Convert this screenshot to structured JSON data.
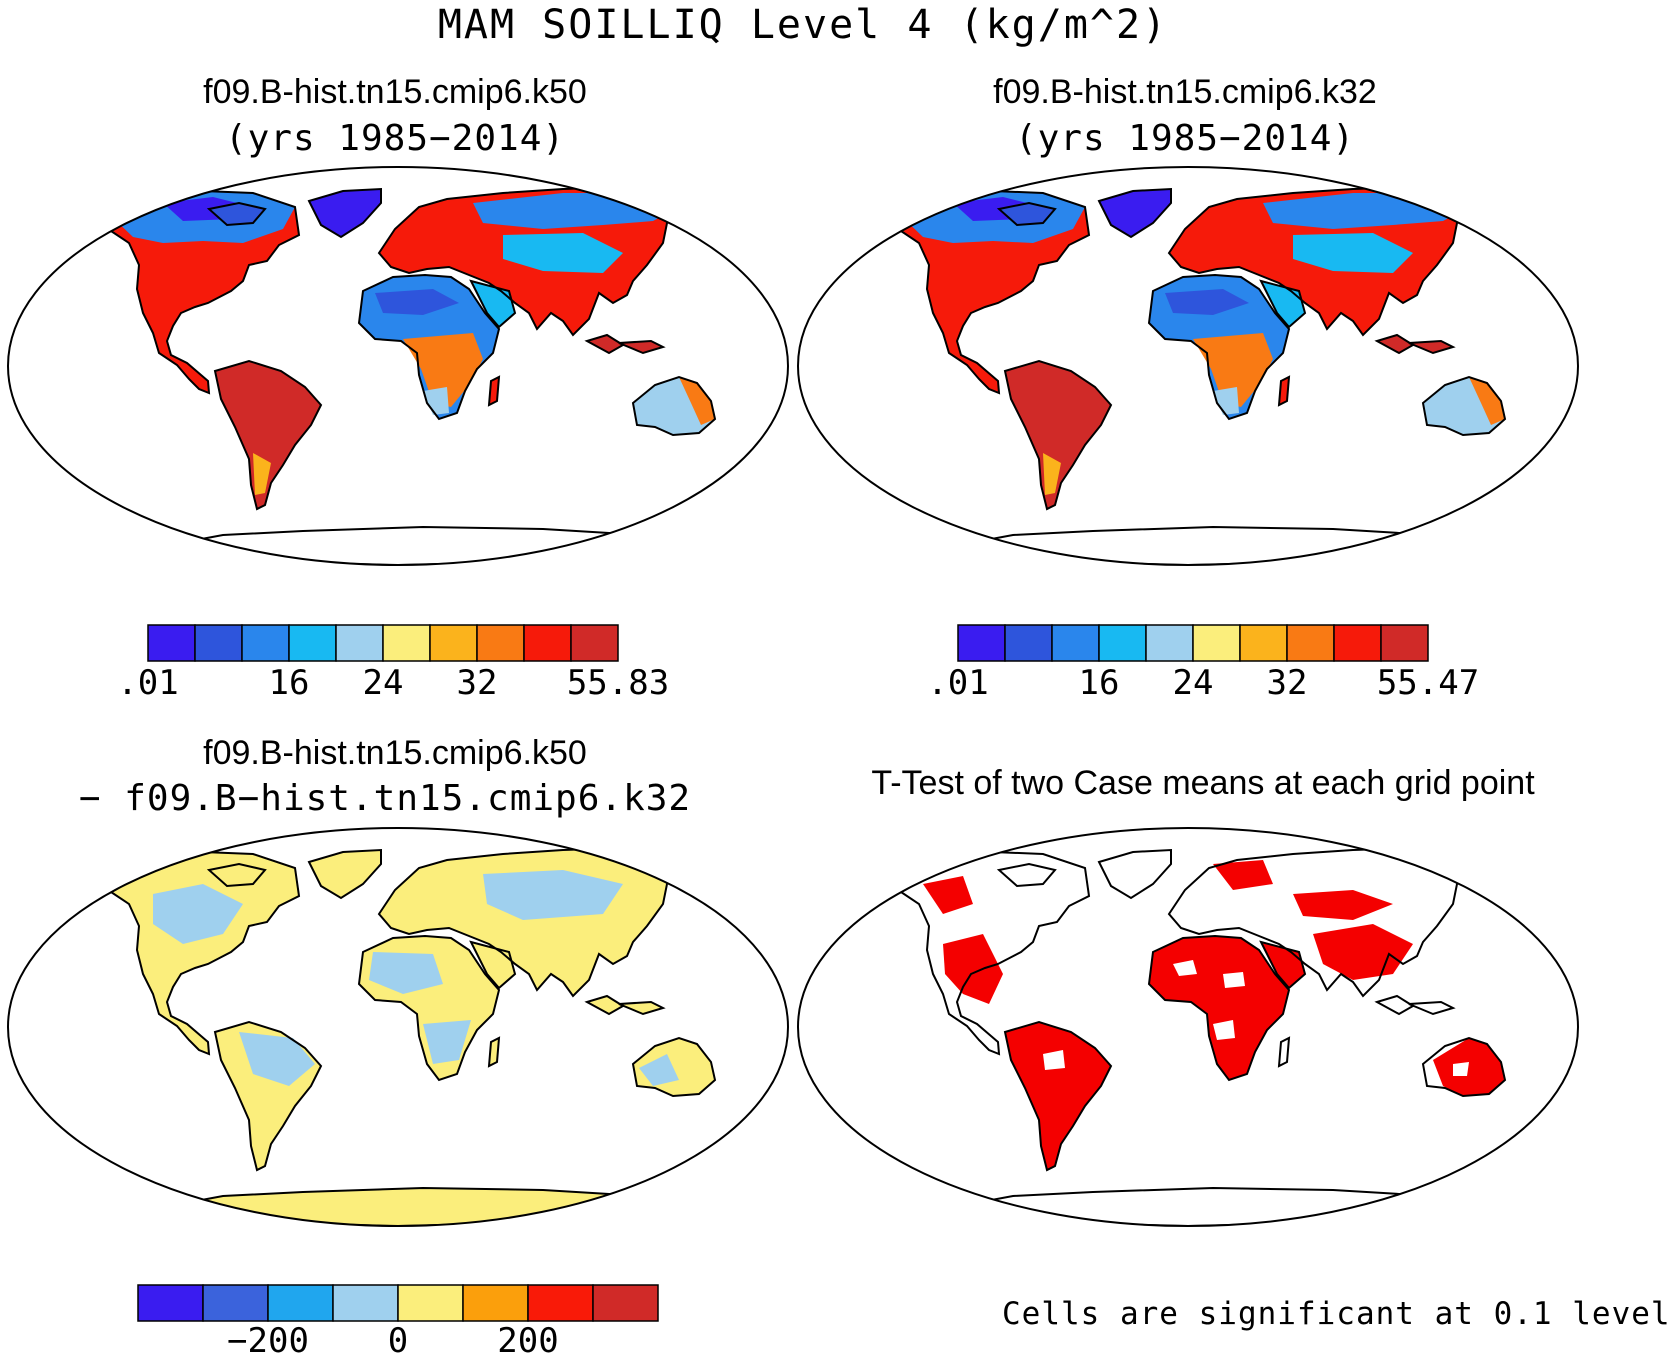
{
  "figure_title": "MAM SOILLIQ Level 4 (kg/m^2)",
  "panels": {
    "top_left": {
      "case": "f09.B-hist.tn15.cmip6.k50",
      "years": "(yrs 1985−2014)"
    },
    "top_right": {
      "case": "f09.B-hist.tn15.cmip6.k32",
      "years": "(yrs 1985−2014)"
    },
    "bottom_left": {
      "line1": "f09.B-hist.tn15.cmip6.k50",
      "line2": "− f09.B−hist.tn15.cmip6.k32"
    },
    "bottom_right": {
      "title": "T-Test of two Case means at each grid point",
      "note": "Cells are significant at 0.1 level"
    }
  },
  "colorbars": {
    "top_left": {
      "colors": [
        "#3a1cf0",
        "#2e55dc",
        "#2a86ec",
        "#18b9f2",
        "#9fd0ee",
        "#fbee7c",
        "#fbb31c",
        "#f97a14",
        "#f61a0a",
        "#d02a28"
      ],
      "labels": [
        ".01",
        "16",
        "24",
        "32",
        "55.83"
      ],
      "label_boundary_index": [
        0,
        3,
        5,
        7,
        10
      ]
    },
    "top_right": {
      "colors": [
        "#3a1cf0",
        "#2e55dc",
        "#2a86ec",
        "#18b9f2",
        "#9fd0ee",
        "#fbee7c",
        "#fbb31c",
        "#f97a14",
        "#f61a0a",
        "#d02a28"
      ],
      "labels": [
        ".01",
        "16",
        "24",
        "32",
        "55.47"
      ],
      "label_boundary_index": [
        0,
        3,
        5,
        7,
        10
      ]
    },
    "bottom_left": {
      "colors": [
        "#3a1cf0",
        "#3b63dc",
        "#20a6ee",
        "#9fd0ee",
        "#fbee7c",
        "#fb9f0c",
        "#f91a08",
        "#d02a28"
      ],
      "labels": [
        "−200",
        "0",
        "200"
      ],
      "label_boundary_index": [
        2,
        4,
        6
      ]
    }
  },
  "map_legend_colors": {
    "ocean": "#ffffff",
    "coast": "#000000",
    "significant": "#f40000"
  }
}
